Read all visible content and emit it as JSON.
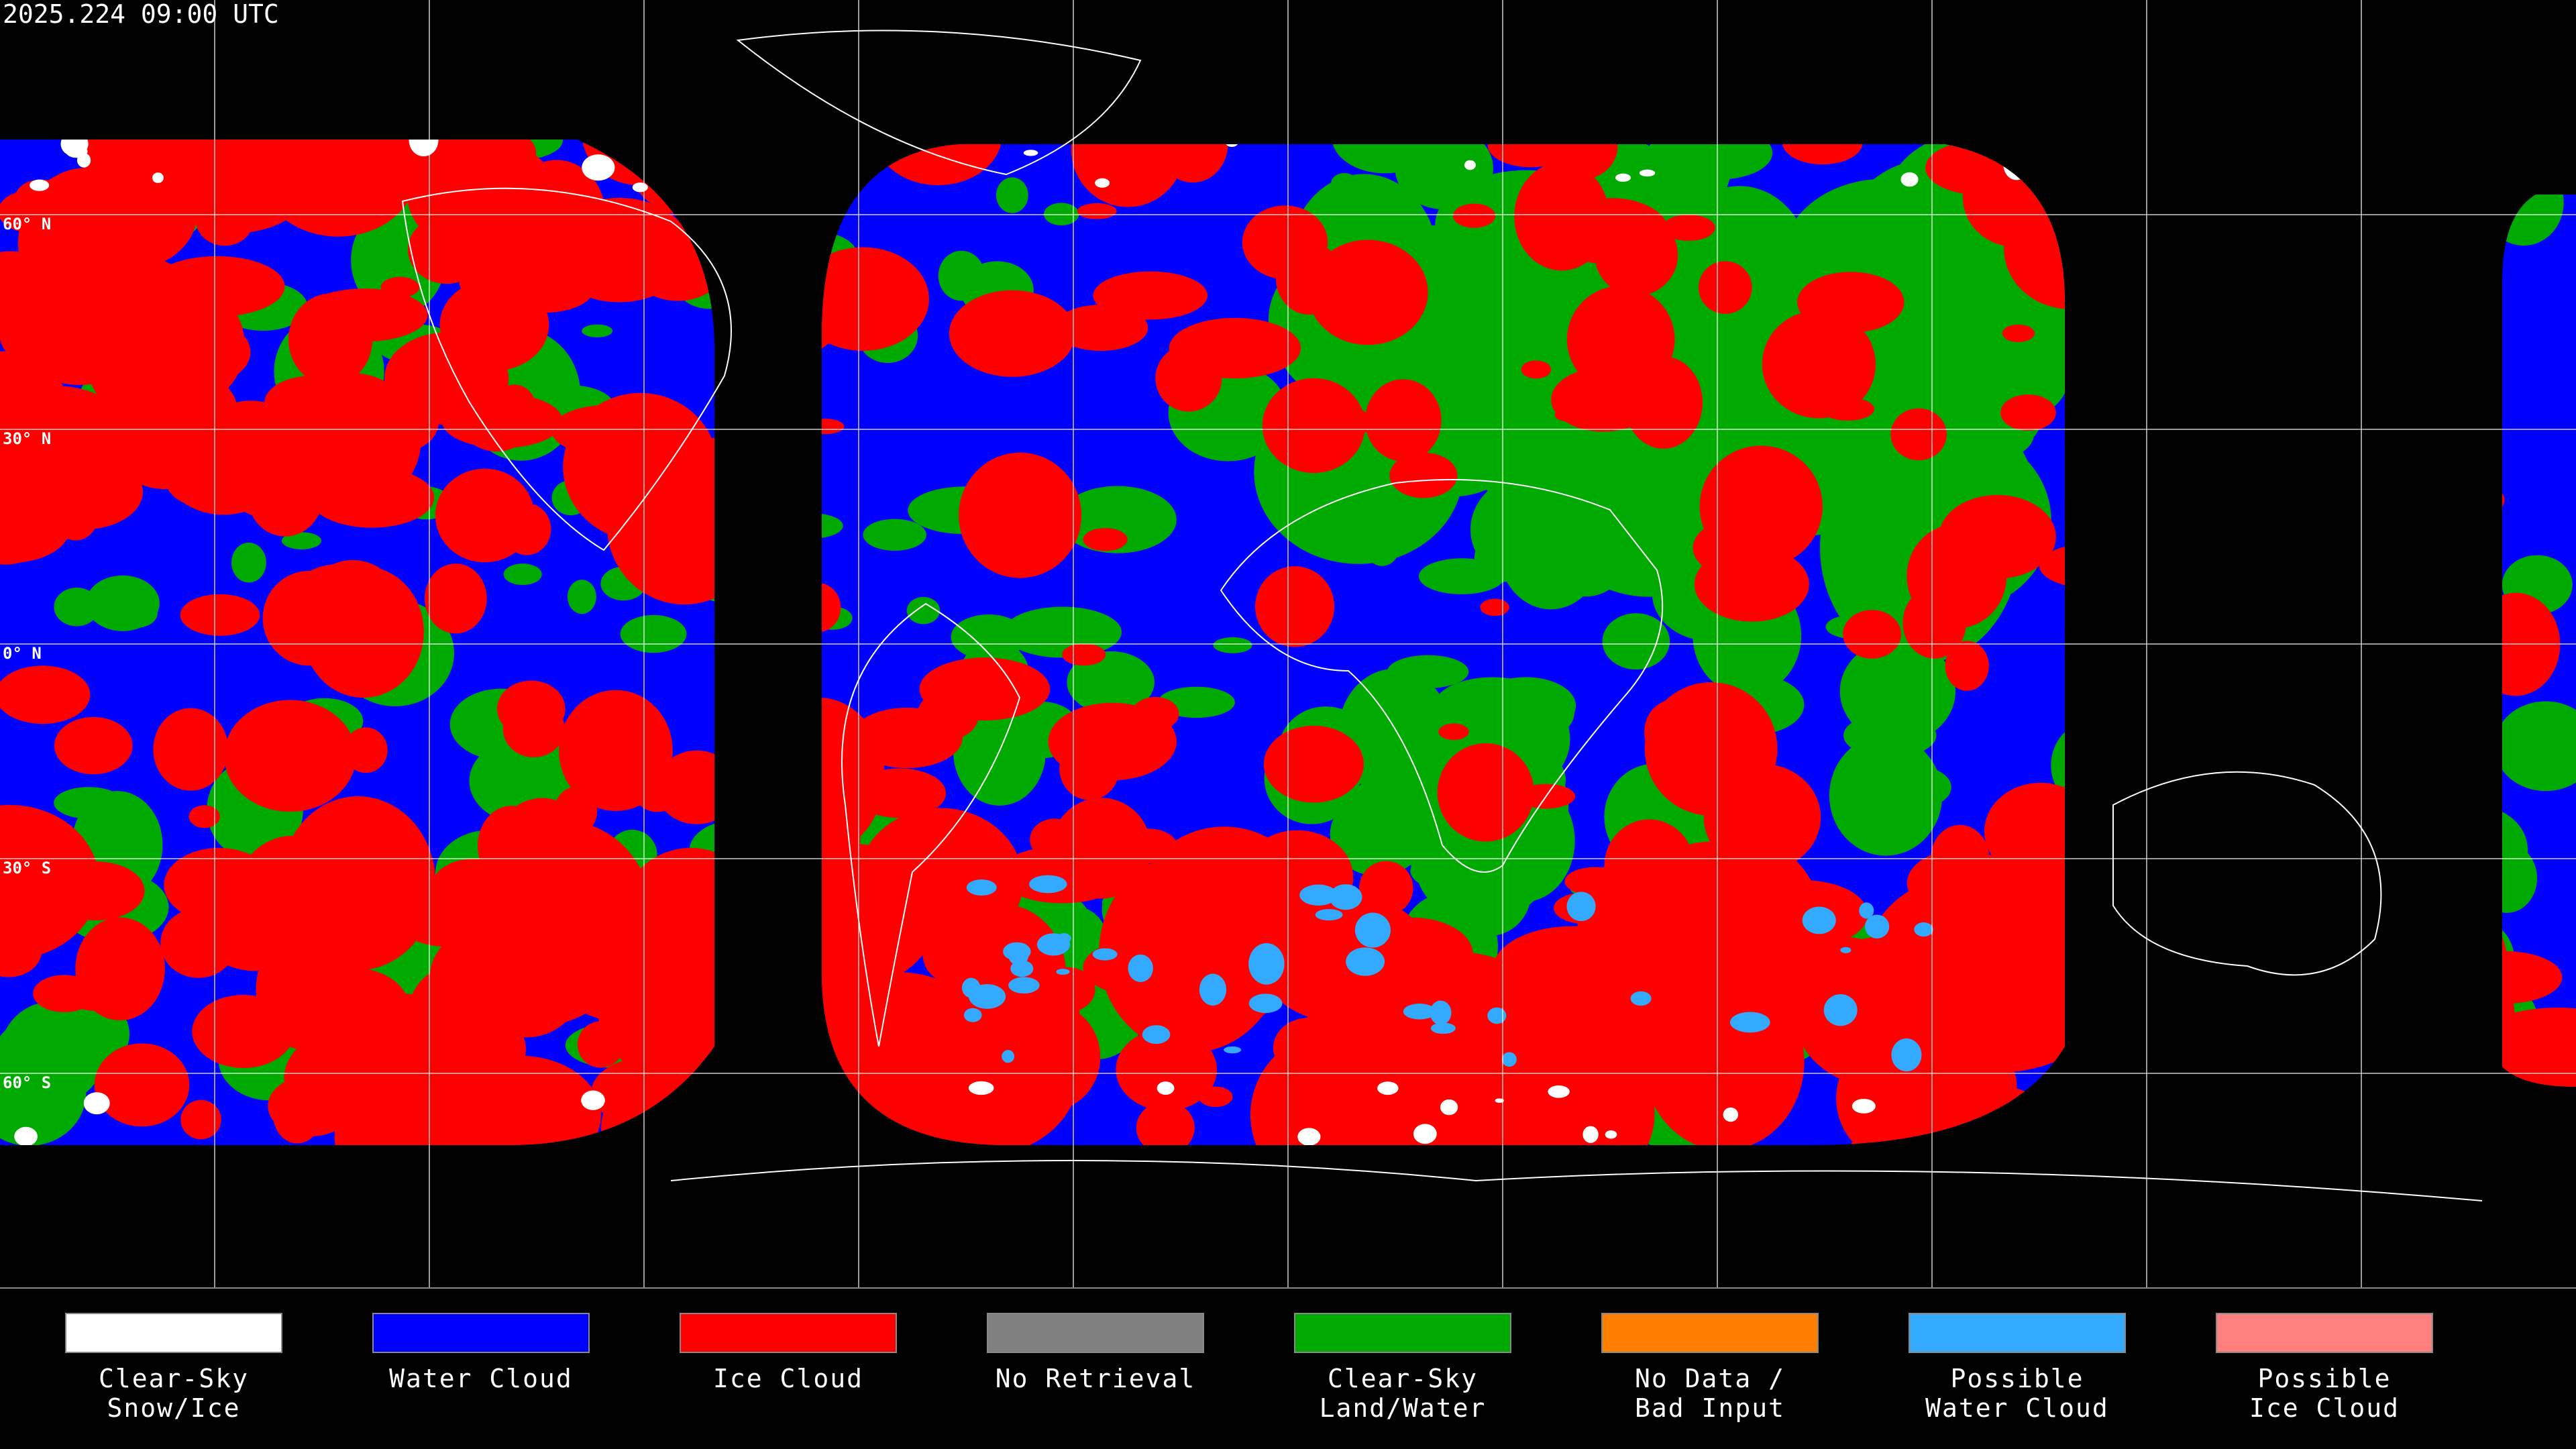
{
  "timestamp": "2025.224 09:00 UTC",
  "latitude_labels": [
    "60° N",
    "30° N",
    "0° N",
    "30° S",
    "60° S"
  ],
  "legend": {
    "items": [
      {
        "label": [
          "Clear-Sky",
          "Snow/Ice"
        ],
        "color": "#ffffff"
      },
      {
        "label": [
          "Water Cloud"
        ],
        "color": "#0000ff"
      },
      {
        "label": [
          "Ice Cloud"
        ],
        "color": "#ff0000"
      },
      {
        "label": [
          "No Retrieval"
        ],
        "color": "#808080"
      },
      {
        "label": [
          "Clear-Sky",
          "Land/Water"
        ],
        "color": "#00aa00"
      },
      {
        "label": [
          "No Data /",
          "Bad Input"
        ],
        "color": "#ff8000"
      },
      {
        "label": [
          "Possible",
          "Water Cloud"
        ],
        "color": "#33aaff"
      },
      {
        "label": [
          "Possible",
          "Ice Cloud"
        ],
        "color": "#ff7f7f"
      }
    ]
  }
}
